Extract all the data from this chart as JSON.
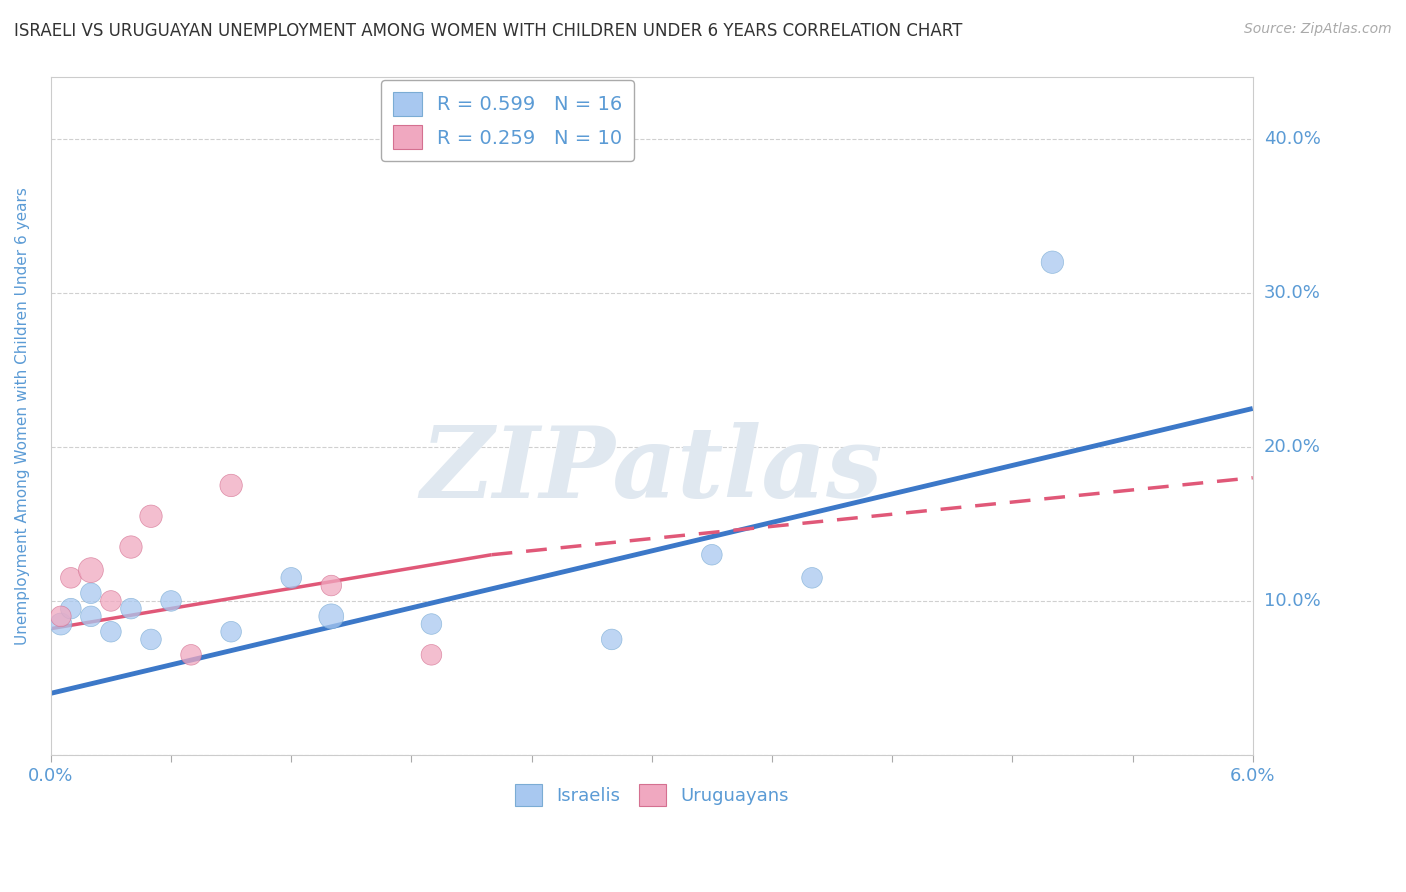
{
  "title": "ISRAELI VS URUGUAYAN UNEMPLOYMENT AMONG WOMEN WITH CHILDREN UNDER 6 YEARS CORRELATION CHART",
  "source": "Source: ZipAtlas.com",
  "ylabel": "Unemployment Among Women with Children Under 6 years",
  "xlim": [
    0.0,
    0.06
  ],
  "ylim": [
    0.0,
    0.44
  ],
  "xticks": [
    0.0,
    0.006,
    0.012,
    0.018,
    0.024,
    0.03,
    0.036,
    0.042,
    0.048,
    0.054,
    0.06
  ],
  "ytick_vals": [
    0.0,
    0.1,
    0.2,
    0.3,
    0.4
  ],
  "right_ytick_labels": [
    "",
    "10.0%",
    "20.0%",
    "30.0%",
    "40.0%"
  ],
  "background_color": "#ffffff",
  "watermark_text": "ZIPatlas",
  "legend_items": [
    {
      "label": "R = 0.599   N = 16",
      "color": "#a8c8f0",
      "edge": "#7bacd4"
    },
    {
      "label": "R = 0.259   N = 10",
      "color": "#f0a8c0",
      "edge": "#d47090"
    }
  ],
  "israelis": {
    "color": "#a8c8f0",
    "edge_color": "#7bacd4",
    "x": [
      0.0005,
      0.001,
      0.002,
      0.002,
      0.003,
      0.004,
      0.005,
      0.006,
      0.009,
      0.012,
      0.014,
      0.019,
      0.028,
      0.033,
      0.038,
      0.05
    ],
    "y": [
      0.085,
      0.095,
      0.09,
      0.105,
      0.08,
      0.095,
      0.075,
      0.1,
      0.08,
      0.115,
      0.09,
      0.085,
      0.075,
      0.13,
      0.115,
      0.32
    ],
    "sizes": [
      250,
      220,
      220,
      220,
      220,
      220,
      220,
      220,
      220,
      220,
      320,
      220,
      220,
      220,
      220,
      260
    ]
  },
  "uruguayans": {
    "color": "#f0a8c0",
    "edge_color": "#d47090",
    "x": [
      0.0005,
      0.001,
      0.002,
      0.003,
      0.004,
      0.005,
      0.007,
      0.009,
      0.014,
      0.019
    ],
    "y": [
      0.09,
      0.115,
      0.12,
      0.1,
      0.135,
      0.155,
      0.065,
      0.175,
      0.11,
      0.065
    ],
    "sizes": [
      220,
      220,
      320,
      220,
      260,
      260,
      220,
      260,
      220,
      220
    ]
  },
  "israeli_line": {
    "color": "#3c78c8",
    "x0": 0.0,
    "y0": 0.04,
    "x1": 0.06,
    "y1": 0.225
  },
  "uruguayan_line_solid": {
    "color": "#e05878",
    "x0": 0.0,
    "y0": 0.082,
    "x1": 0.022,
    "y1": 0.13
  },
  "uruguayan_line_dashed": {
    "color": "#e05878",
    "x0": 0.022,
    "y0": 0.13,
    "x1": 0.06,
    "y1": 0.18
  },
  "title_fontsize": 12,
  "source_fontsize": 10,
  "ylabel_fontsize": 11,
  "axis_label_color": "#5b9bd5",
  "tick_color": "#5b9bd5",
  "grid_color": "#d0d0d0",
  "marker_aspect": 1.6
}
